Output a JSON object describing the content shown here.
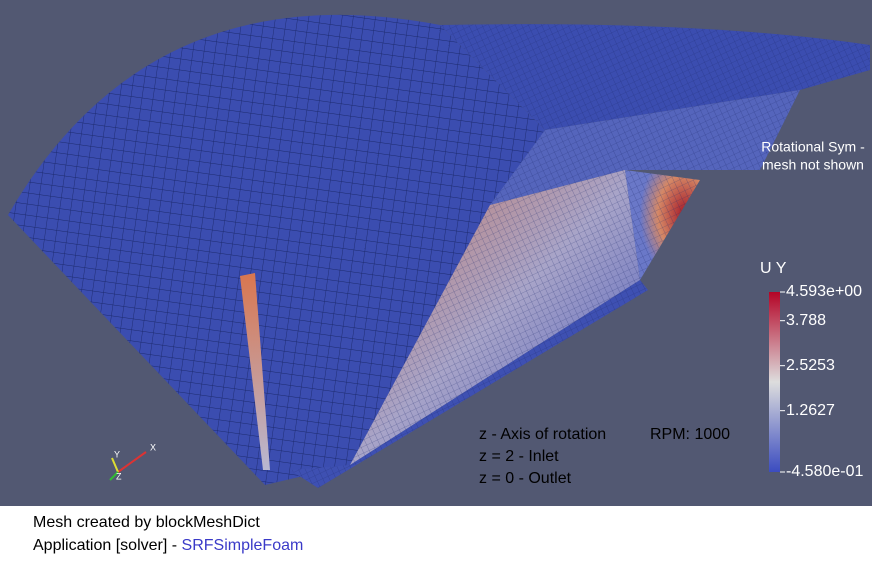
{
  "viewport": {
    "note_top": [
      "Rotational Sym -",
      "mesh not shown"
    ],
    "annotations": [
      "z - Axis of rotation",
      "z = 2 - Inlet",
      "z = 0 - Outlet"
    ],
    "rpm": "RPM: 1000",
    "axes": [
      "X",
      "Y",
      "Z"
    ],
    "colorbar": {
      "title": "U Y",
      "range": [
        -0.458,
        4.593
      ],
      "ticks": [
        {
          "value": 4.593,
          "label": "4.593e+00"
        },
        3.788,
        2.5253,
        1.2627,
        {
          "value": -0.458,
          "label": "-4.580e-01"
        }
      ]
    }
  },
  "caption": {
    "line1": "Mesh created by blockMeshDict",
    "line2_prefix": "Application [solver] -",
    "solver": "SRFSimpleFoam"
  }
}
